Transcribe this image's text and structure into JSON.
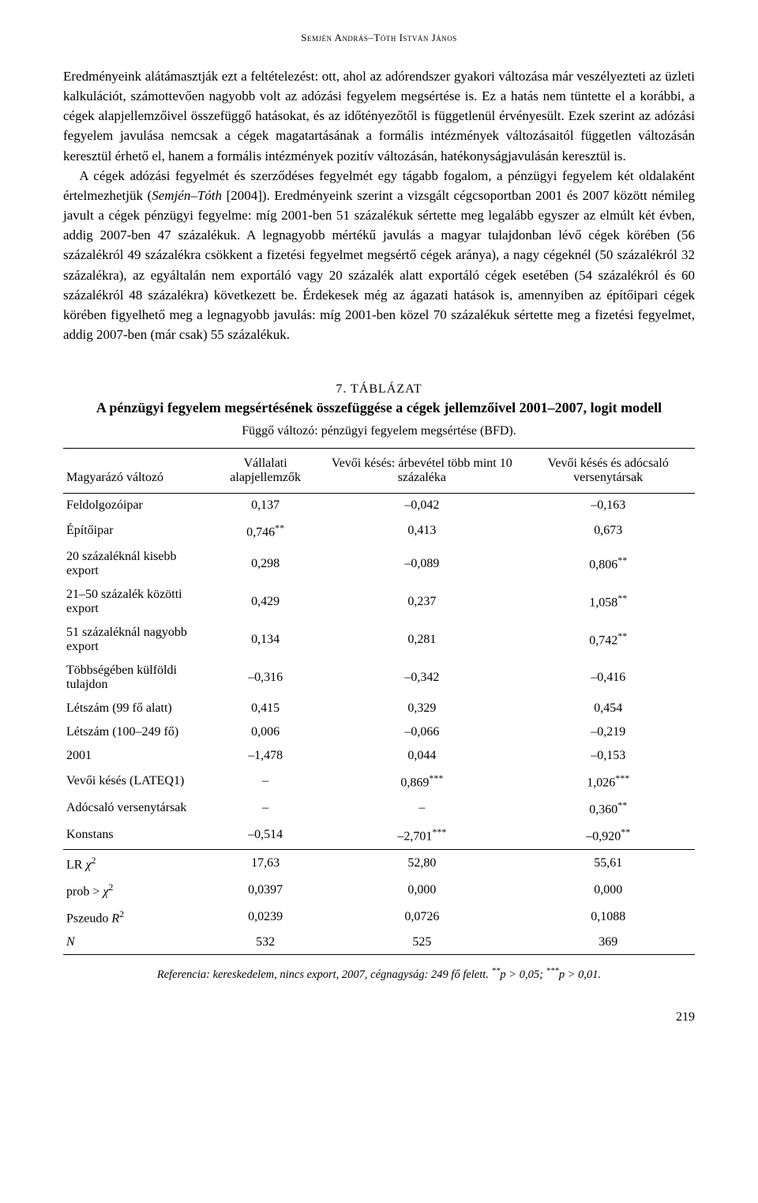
{
  "running_header": "Semjén András–Tóth István János",
  "para1": "Eredményeink alátámasztják ezt a feltételezést: ott, ahol az adórendszer gyakori változása már veszélyezteti az üzleti kalkulációt, számottevően nagyobb volt az adózási fegyelem megsértése is. Ez a hatás nem tüntette el a korábbi, a cégek alapjellemzőivel összefüggő hatásokat, és az időtényezőtől is függetlenül érvényesült. Ezek szerint az adózási fegyelem javulása nemcsak a cégek magatartásának a formális intézmények változásaitól független változásán keresztül érhető el, hanem a formális intézmények pozitív változásán, hatékonyságjavulásán keresztül is.",
  "para2_html": "A cégek adózási fegyelmét és szerződéses fegyelmét egy tágabb fogalom, a pénzügyi fegyelem két oldalaként értelmezhetjük (<span class=\"ital\">Semjén–Tóth</span> [2004]). Eredményeink szerint a vizsgált cégcsoportban 2001 és 2007 között némileg javult a cégek pénzügyi fegyelme: míg 2001-ben 51 százalékuk sértette meg legalább egyszer az elmúlt két évben, addig 2007-ben 47 százalékuk. A legnagyobb mértékű javulás a magyar tulajdonban lévő cégek körében (56 százalékról 49 százalékra csökkent a fizetési fegyelmet megsértő cégek aránya), a nagy cégeknél (50 százalékról 32 százalékra), az egyáltalán nem exportáló vagy 20 százalék alatt exportáló cégek esetében (54 százalékról és 60 százalékról 48 százalékra) következett be. Érdekesek még az ágazati hatások is, amennyiben az építőipari cégek körében figyelhető meg a legnagyobb javulás: míg 2001-ben közel 70 százalékuk sértette meg a fizetési fegyelmet, addig 2007-ben (már csak) 55 százalékuk.",
  "table": {
    "number": "7. TÁBLÁZAT",
    "title": "A pénzügyi fegyelem megsértésének összefüggése a cégek jellemzőivel 2001–2007, logit modell",
    "dep_label": "Függő változó: pénzügyi fegyelem megsértése (BFD).",
    "col_headers": [
      "Magyarázó változó",
      "Vállalati alapjellemzők",
      "Vevői késés: árbevétel több mint 10 százaléka",
      "Vevői késés és adócsaló versenytársak"
    ],
    "rows": [
      {
        "label": "Feldolgozóipar",
        "c1": "0,137",
        "c2": "–0,042",
        "c3": "–0,163"
      },
      {
        "label": "Építőipar",
        "c1": "0,746<sup>**</sup>",
        "c2": "0,413",
        "c3": "0,673"
      },
      {
        "label": "20 százaléknál kisebb export",
        "c1": "0,298",
        "c2": "–0,089",
        "c3": "0,806<sup>**</sup>"
      },
      {
        "label": "21–50 százalék közötti export",
        "c1": "0,429",
        "c2": "0,237",
        "c3": "1,058<sup>**</sup>"
      },
      {
        "label": "51 százaléknál nagyobb export",
        "c1": "0,134",
        "c2": "0,281",
        "c3": "0,742<sup>**</sup>"
      },
      {
        "label": "Többségében külföldi tulajdon",
        "c1": "–0,316",
        "c2": "–0,342",
        "c3": "–0,416"
      },
      {
        "label": "Létszám (99 fő alatt)",
        "c1": "0,415",
        "c2": "0,329",
        "c3": "0,454"
      },
      {
        "label": "Létszám (100–249 fő)",
        "c1": "0,006",
        "c2": "–0,066",
        "c3": "–0,219"
      },
      {
        "label": "2001",
        "c1": "–1,478",
        "c2": "0,044",
        "c3": "–0,153"
      },
      {
        "label": "Vevői késés (LATEQ1)",
        "c1": "–",
        "c2": "0,869<sup>***</sup>",
        "c3": "1,026<sup>***</sup>"
      },
      {
        "label": "Adócsaló versenytársak",
        "c1": "–",
        "c2": "–",
        "c3": "0,360<sup>**</sup>"
      },
      {
        "label": "Konstans",
        "c1": "–0,514",
        "c2": "–2,701<sup>***</sup>",
        "c3": "–0,920<sup>**</sup>"
      }
    ],
    "stat_rows": [
      {
        "label": "LR <span class=\"ital\">χ</span><sup>2</sup>",
        "c1": "17,63",
        "c2": "52,80",
        "c3": "55,61"
      },
      {
        "label": "prob > <span class=\"ital\">χ</span><sup>2</sup>",
        "c1": "0,0397",
        "c2": "0,000",
        "c3": "0,000"
      },
      {
        "label": "Pszeudo <span class=\"ital\">R</span><sup>2</sup>",
        "c1": "0,0239",
        "c2": "0,0726",
        "c3": "0,1088"
      },
      {
        "label": "<span class=\"ital\">N</span>",
        "c1": "532",
        "c2": "525",
        "c3": "369"
      }
    ],
    "footnote_html": "<span class=\"ref-label\">Referencia:</span> kereskedelem, nincs export, 2007, cégnagyság: 249 fő felett. <sup>**</sup><span class=\"ital\">p</span> > 0,05; <sup>***</sup><span class=\"ital\">p</span> > 0,01."
  },
  "page_number": "219"
}
